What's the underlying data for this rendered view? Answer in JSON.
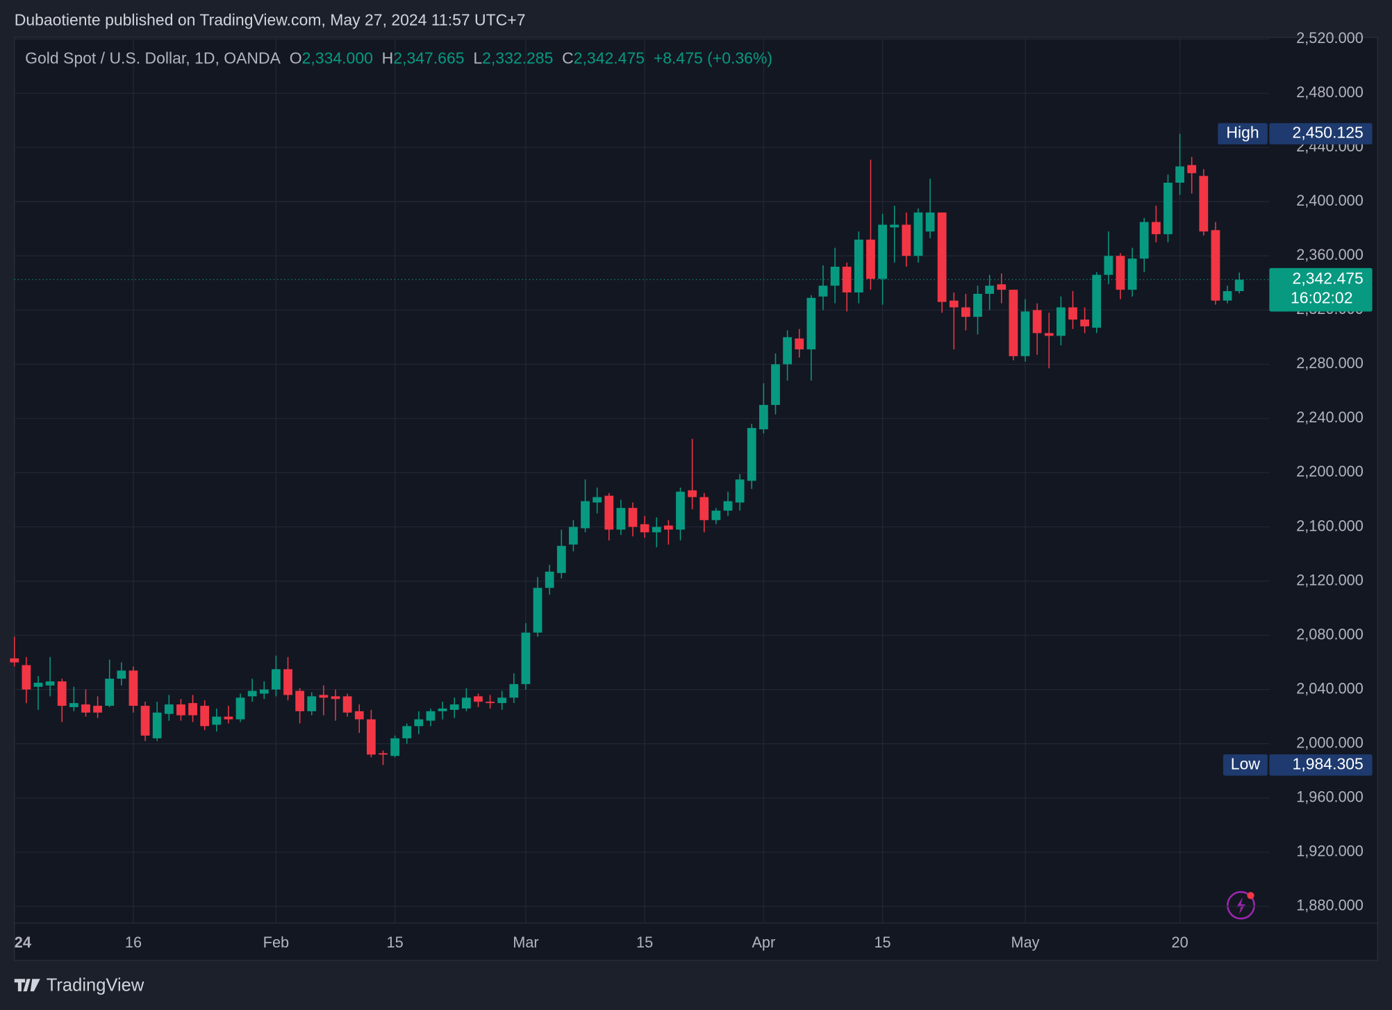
{
  "header": {
    "published": "Dubaotiente published on TradingView.com, May 27, 2024 11:57 UTC+7"
  },
  "chart_data": {
    "type": "candlestick",
    "legend": {
      "symbol": "Gold Spot / U.S. Dollar, 1D, OANDA",
      "items": [
        {
          "key": "O",
          "label": "2,334.000"
        },
        {
          "key": "H",
          "label": "2,347.665"
        },
        {
          "key": "L",
          "label": "2,332.285"
        },
        {
          "key": "C",
          "label": "2,342.475"
        }
      ],
      "change": "+8.475 (+0.36%)"
    },
    "categories": [
      "24",
      null,
      null,
      null,
      null,
      null,
      null,
      null,
      null,
      null,
      "16",
      null,
      null,
      null,
      null,
      null,
      null,
      null,
      null,
      null,
      null,
      null,
      "Feb",
      null,
      null,
      null,
      null,
      null,
      null,
      null,
      null,
      null,
      "15",
      null,
      null,
      null,
      null,
      null,
      null,
      null,
      null,
      null,
      null,
      "Mar",
      null,
      null,
      null,
      null,
      null,
      null,
      null,
      null,
      null,
      "15",
      null,
      null,
      null,
      null,
      null,
      null,
      null,
      null,
      null,
      "Apr",
      null,
      null,
      null,
      null,
      null,
      null,
      null,
      null,
      null,
      "15",
      null,
      null,
      null,
      null,
      null,
      null,
      null,
      null,
      null,
      null,
      null,
      "May",
      null,
      null,
      null,
      null,
      null,
      null,
      null,
      null,
      null,
      null,
      null,
      null,
      "20",
      null,
      null,
      null,
      null,
      null
    ],
    "open": [
      2063,
      2058,
      2042,
      2043,
      2046,
      2027,
      2029,
      2028,
      2028,
      2048,
      2054,
      2028,
      2004,
      2022,
      2029,
      2030,
      2028,
      2014,
      2020,
      2018,
      2035,
      2037,
      2040,
      2055,
      2039,
      2024,
      2036,
      2035,
      2035,
      2024,
      2018,
      1993,
      1991,
      2004,
      2013,
      2017,
      2024,
      2025,
      2026,
      2035,
      2031,
      2030,
      2034,
      2044,
      2082,
      2115,
      2126,
      2147,
      2159,
      2178,
      2183,
      2158,
      2174,
      2162,
      2156,
      2161,
      2158,
      2187,
      2182,
      2165,
      2172,
      2178,
      2194,
      2232,
      2250,
      2280,
      2299,
      2291,
      2330,
      2338,
      2352,
      2333,
      2372,
      2343,
      2381,
      2383,
      2360,
      2378,
      2392,
      2327,
      2322,
      2315,
      2332,
      2339,
      2335,
      2286,
      2320,
      2303,
      2301,
      2322,
      2313,
      2307,
      2346,
      2360,
      2335,
      2358,
      2385,
      2376,
      2414,
      2427,
      2419,
      2379,
      2327,
      2334
    ],
    "high": [
      2079,
      2064,
      2050,
      2064,
      2048,
      2042,
      2040,
      2035,
      2062,
      2060,
      2057,
      2031,
      2031,
      2036,
      2033,
      2036,
      2032,
      2026,
      2028,
      2037,
      2048,
      2046,
      2065,
      2064,
      2041,
      2038,
      2043,
      2040,
      2037,
      2029,
      2025,
      1995,
      2006,
      2015,
      2024,
      2026,
      2031,
      2034,
      2041,
      2037,
      2036,
      2039,
      2052,
      2089,
      2123,
      2132,
      2158,
      2165,
      2195,
      2189,
      2185,
      2180,
      2178,
      2168,
      2167,
      2165,
      2189,
      2225,
      2185,
      2174,
      2186,
      2199,
      2236,
      2266,
      2288,
      2305,
      2306,
      2331,
      2353,
      2366,
      2355,
      2378,
      2431,
      2391,
      2397,
      2392,
      2395,
      2417,
      2392,
      2333,
      2332,
      2338,
      2346,
      2347,
      2335,
      2328,
      2325,
      2318,
      2330,
      2334,
      2322,
      2348,
      2378,
      2362,
      2366,
      2388,
      2397,
      2420,
      2450.125,
      2433,
      2424,
      2385,
      2338,
      2347.665
    ],
    "low": [
      2057,
      2030,
      2025,
      2035,
      2016,
      2024,
      2020,
      2019,
      2027,
      2043,
      2023,
      2002,
      2002,
      2017,
      2017,
      2016,
      2010,
      2009,
      2015,
      2016,
      2031,
      2033,
      2035,
      2032,
      2015,
      2021,
      2021,
      2017,
      2020,
      2008,
      1990,
      1984.305,
      1990,
      2000,
      2007,
      2013,
      2018,
      2019,
      2024,
      2027,
      2026,
      2025,
      2030,
      2040,
      2079,
      2110,
      2122,
      2142,
      2156,
      2170,
      2150,
      2154,
      2153,
      2152,
      2145,
      2147,
      2150,
      2173,
      2156,
      2162,
      2168,
      2172,
      2188,
      2229,
      2243,
      2268,
      2285,
      2268,
      2320,
      2325,
      2319,
      2325,
      2335,
      2324,
      2355,
      2352,
      2355,
      2373,
      2318,
      2291,
      2305,
      2302,
      2320,
      2325,
      2283,
      2282,
      2287,
      2277,
      2294,
      2306,
      2303,
      2303,
      2339,
      2328,
      2330,
      2348,
      2370,
      2370,
      2405,
      2406,
      2375,
      2324,
      2325,
      2332.285
    ],
    "close": [
      2060,
      2040,
      2045,
      2046,
      2028,
      2030,
      2023,
      2023,
      2048,
      2054,
      2028,
      2006,
      2023,
      2029,
      2021,
      2021,
      2013,
      2020,
      2018,
      2034,
      2039,
      2040,
      2055,
      2036,
      2024,
      2035,
      2034,
      2033,
      2023,
      2018,
      1992,
      1992,
      2004,
      2013,
      2018,
      2024,
      2026,
      2029,
      2034,
      2031,
      2030,
      2034,
      2044,
      2082,
      2115,
      2127,
      2146,
      2160,
      2179,
      2182,
      2158,
      2174,
      2160,
      2156,
      2160,
      2158,
      2186,
      2182,
      2165,
      2172,
      2179,
      2195,
      2233,
      2250,
      2280,
      2300,
      2291,
      2329,
      2338,
      2352,
      2333,
      2372,
      2343,
      2383,
      2383,
      2360,
      2392,
      2392,
      2326,
      2322,
      2315,
      2332,
      2338,
      2335,
      2286,
      2319,
      2303,
      2301,
      2322,
      2313,
      2308,
      2346,
      2360,
      2335,
      2358,
      2385,
      2376,
      2414,
      2426,
      2421,
      2378,
      2327,
      2334,
      2342.475
    ],
    "up_color": "#089981",
    "down_color": "#f23645",
    "ylim": [
      1867.7,
      2521.3
    ],
    "yticks": [
      {
        "value": 1880,
        "label": "1,880.000"
      },
      {
        "value": 1920,
        "label": "1,920.000"
      },
      {
        "value": 1960,
        "label": "1,960.000"
      },
      {
        "value": 2000,
        "label": "2,000.000"
      },
      {
        "value": 2040,
        "label": "2,040.000"
      },
      {
        "value": 2080,
        "label": "2,080.000"
      },
      {
        "value": 2120,
        "label": "2,120.000"
      },
      {
        "value": 2160,
        "label": "2,160.000"
      },
      {
        "value": 2200,
        "label": "2,200.000"
      },
      {
        "value": 2240,
        "label": "2,240.000"
      },
      {
        "value": 2280,
        "label": "2,280.000"
      },
      {
        "value": 2320,
        "label": "2,320.000"
      },
      {
        "value": 2360,
        "label": "2,360.000"
      },
      {
        "value": 2400,
        "label": "2,400.000"
      },
      {
        "value": 2440,
        "label": "2,440.000"
      },
      {
        "value": 2480,
        "label": "2,480.000"
      },
      {
        "value": 2520,
        "label": "2,520.000"
      }
    ],
    "grid": true,
    "markers": [
      {
        "name": "High",
        "value": 2450.125,
        "label": "2,450.125"
      },
      {
        "name": "Low",
        "value": 1984.305,
        "label": "1,984.305"
      }
    ],
    "current": {
      "value": 2342.475,
      "label": "2,342.475",
      "countdown": "16:02:02"
    }
  },
  "footer": {
    "brand": "TradingView"
  }
}
